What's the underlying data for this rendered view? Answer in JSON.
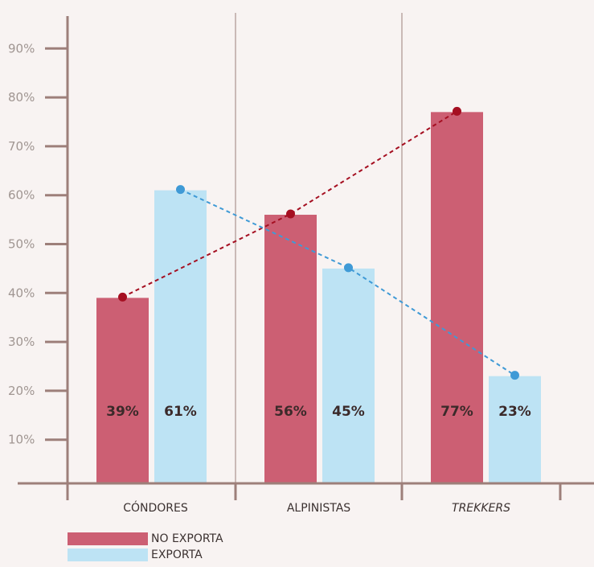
{
  "chart_data": {
    "type": "bar",
    "categories": [
      "CÓNDORES",
      "ALPINISTAS",
      "TREKKERS"
    ],
    "category_italic": [
      false,
      false,
      true
    ],
    "series": [
      {
        "name": "NO EXPORTA",
        "values": [
          39,
          56,
          77
        ],
        "labels": [
          "39%",
          "56%",
          "77%"
        ],
        "color": "#cc5f73",
        "line_color": "#a50f21"
      },
      {
        "name": "EXPORTA",
        "values": [
          61,
          45,
          23
        ],
        "labels": [
          "61%",
          "45%",
          "23%"
        ],
        "color": "#bde3f4",
        "line_color": "#3f9ad6"
      }
    ],
    "y_ticks": [
      "10%",
      "20%",
      "30%",
      "40%",
      "50%",
      "60%",
      "70%",
      "80%",
      "90%"
    ],
    "y_tick_values": [
      10,
      20,
      30,
      40,
      50,
      60,
      70,
      80,
      90
    ],
    "ylim": [
      0,
      90
    ],
    "grid": false,
    "legend_position": "bottom-left"
  },
  "colors": {
    "background": "#f8f3f2",
    "axis": "#9d7f7a"
  }
}
